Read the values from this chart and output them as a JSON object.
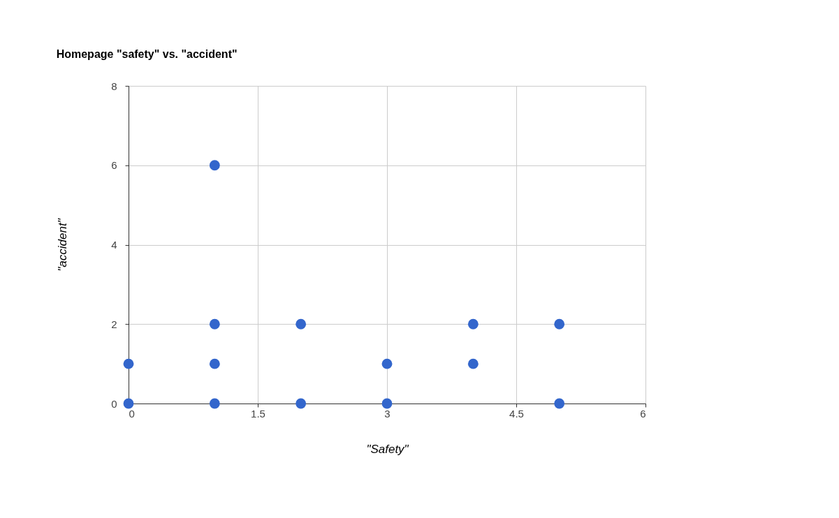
{
  "chart_data": {
    "type": "scatter",
    "title": "Homepage \"safety\" vs. \"accident\"",
    "xlabel": "\"Safety\"",
    "ylabel": "\"accident\"",
    "x": [
      0,
      0,
      1,
      1,
      1,
      1,
      2,
      2,
      3,
      3,
      4,
      4,
      5,
      5
    ],
    "series": [
      {
        "color": "#3366cc",
        "values": [
          0,
          1,
          6,
          2,
          1,
          0,
          2,
          0,
          1,
          0,
          2,
          1,
          2,
          0
        ]
      }
    ],
    "xlim": [
      0,
      6
    ],
    "xticks": [
      0,
      1.5,
      3,
      4.5,
      6
    ],
    "ylim": [
      0,
      8
    ],
    "yticks": [
      0,
      2,
      4,
      6,
      8
    ],
    "grid": true,
    "marker": "circle"
  }
}
